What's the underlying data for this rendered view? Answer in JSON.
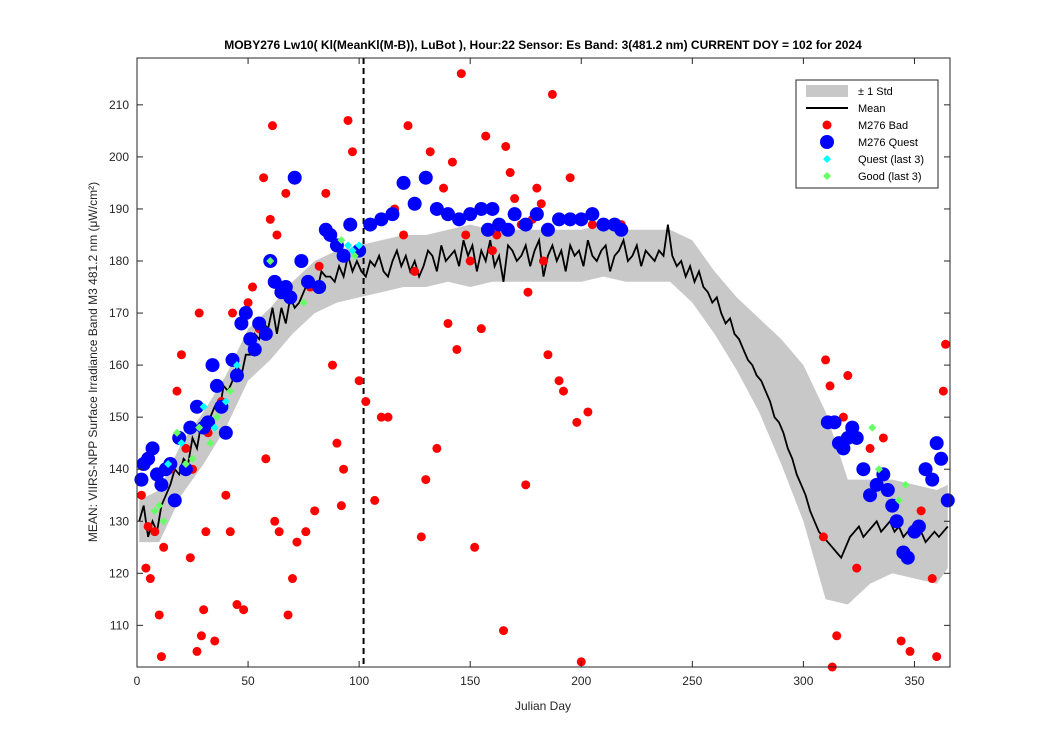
{
  "chart_data": {
    "type": "scatter",
    "title": "MOBY276   Lw10( Kl(MeanKl(M-B)), LuBot ),    Hour:22 Sensor: Es Band: 3(481.2 nm)   CURRENT DOY = 102 for 2024",
    "xlabel": "Julian Day",
    "ylabel": "MEAN: VIIRS-NPP Surface Irradiance Band M3 481.2 nm (μW/cm²)",
    "xlim": [
      0,
      366
    ],
    "ylim": [
      102,
      219
    ],
    "xticks": [
      0,
      50,
      100,
      150,
      200,
      250,
      300,
      350
    ],
    "yticks": [
      110,
      120,
      130,
      140,
      150,
      160,
      170,
      180,
      190,
      200,
      210
    ],
    "current_doy": 102,
    "legend_position": "top-right",
    "colors": {
      "band": "#c8c8c8",
      "mean": "#000000",
      "bad": "#ff0000",
      "quest": "#0000ff",
      "quest_last3": "#00ffff",
      "good_last3": "#66ff66",
      "doy_line": "#000000"
    },
    "legend": [
      {
        "key": "band",
        "label": "± 1 Std"
      },
      {
        "key": "mean",
        "label": "Mean"
      },
      {
        "key": "bad",
        "label": "M276 Bad"
      },
      {
        "key": "quest",
        "label": "M276 Quest"
      },
      {
        "key": "quest_last3",
        "label": "Quest (last 3)"
      },
      {
        "key": "good_last3",
        "label": "Good (last 3)"
      }
    ],
    "series": [
      {
        "name": "Mean",
        "type": "line",
        "x": [
          1,
          3,
          5,
          7,
          9,
          11,
          13,
          15,
          17,
          19,
          21,
          23,
          25,
          27,
          29,
          31,
          33,
          35,
          37,
          39,
          41,
          43,
          45,
          47,
          49,
          51,
          53,
          55,
          57,
          59,
          61,
          63,
          65,
          67,
          69,
          71,
          73,
          75,
          77,
          79,
          81,
          83,
          85,
          87,
          89,
          91,
          93,
          95,
          97,
          99,
          101,
          103,
          105,
          107,
          109,
          111,
          113,
          115,
          117,
          119,
          121,
          123,
          125,
          127,
          129,
          131,
          133,
          135,
          137,
          139,
          141,
          143,
          145,
          147,
          149,
          151,
          153,
          155,
          157,
          159,
          161,
          163,
          165,
          167,
          169,
          171,
          173,
          175,
          177,
          179,
          181,
          183,
          185,
          187,
          189,
          191,
          193,
          195,
          197,
          199,
          201,
          203,
          205,
          207,
          209,
          211,
          213,
          215,
          217,
          219,
          221,
          223,
          225,
          227,
          229,
          231,
          233,
          235,
          237,
          239,
          241,
          243,
          245,
          247,
          249,
          251,
          253,
          255,
          257,
          259,
          261,
          263,
          265,
          267,
          269,
          271,
          273,
          275,
          277,
          279,
          281,
          283,
          285,
          287,
          289,
          291,
          293,
          295,
          297,
          299,
          301,
          303,
          305,
          307,
          309,
          311,
          313,
          315,
          317,
          319,
          321,
          323,
          325,
          327,
          329,
          331,
          333,
          335,
          337,
          339,
          341,
          343,
          345,
          347,
          349,
          351,
          353,
          355,
          357,
          359,
          361,
          363,
          365
        ],
        "y": [
          130,
          133,
          127,
          130,
          128,
          133,
          135,
          137,
          140,
          139,
          142,
          141,
          146,
          144,
          149,
          147,
          150,
          152,
          151,
          156,
          155,
          157,
          160,
          158,
          162,
          162,
          166,
          165,
          168,
          167,
          171,
          166,
          171,
          168,
          173,
          171,
          172,
          174,
          176,
          175,
          174,
          178,
          177,
          177,
          176,
          179,
          177,
          181,
          178,
          180,
          178,
          177,
          180,
          179,
          181,
          178,
          177,
          180,
          182,
          179,
          181,
          178,
          180,
          177,
          179,
          182,
          181,
          178,
          183,
          180,
          181,
          182,
          179,
          184,
          181,
          183,
          178,
          182,
          180,
          184,
          179,
          181,
          176,
          183,
          182,
          180,
          181,
          183,
          179,
          182,
          184,
          177,
          181,
          183,
          180,
          182,
          178,
          183,
          181,
          182,
          179,
          184,
          181,
          180,
          182,
          183,
          178,
          181,
          182,
          184,
          180,
          181,
          183,
          179,
          182,
          181,
          180,
          182,
          181,
          187,
          181,
          179,
          180,
          177,
          179,
          176,
          178,
          175,
          174,
          172,
          173,
          170,
          168,
          169,
          166,
          165,
          163,
          161,
          160,
          158,
          157,
          155,
          153,
          150,
          149,
          147,
          144,
          142,
          139,
          137,
          135,
          132,
          130,
          128,
          127,
          126,
          125,
          124,
          123,
          125,
          127,
          128,
          129,
          127,
          128,
          129,
          130,
          128,
          129,
          130,
          128,
          129,
          127,
          128,
          129,
          127,
          128,
          126,
          127,
          128,
          127,
          128,
          129
        ]
      },
      {
        "name": "± 1 Std",
        "type": "band",
        "x": [
          1,
          10,
          20,
          30,
          40,
          50,
          60,
          70,
          80,
          90,
          100,
          110,
          120,
          130,
          140,
          150,
          160,
          170,
          180,
          190,
          200,
          210,
          220,
          230,
          240,
          250,
          260,
          270,
          280,
          290,
          300,
          310,
          320,
          330,
          340,
          350,
          360,
          365
        ],
        "y": [
          130,
          131,
          140,
          146,
          153,
          162,
          166,
          171,
          175,
          177,
          178,
          179,
          180,
          180,
          181,
          181,
          181,
          181,
          181,
          181,
          181,
          182,
          181,
          181,
          181,
          178,
          172,
          166,
          160,
          153,
          145,
          133,
          126,
          128,
          129,
          128,
          127,
          129
        ],
        "std": [
          4,
          5,
          5,
          5,
          5,
          5,
          5,
          5,
          5,
          5,
          5,
          5,
          5,
          5,
          5,
          6,
          5,
          5,
          5,
          5,
          5,
          5,
          5,
          5,
          5,
          6,
          6,
          7,
          9,
          12,
          15,
          18,
          12,
          10,
          9,
          9,
          9,
          8
        ]
      },
      {
        "name": "M276 Bad",
        "type": "scatter",
        "x": [
          2,
          4,
          5,
          6,
          8,
          10,
          11,
          12,
          15,
          18,
          20,
          22,
          24,
          25,
          27,
          28,
          29,
          30,
          31,
          32,
          35,
          38,
          40,
          42,
          43,
          45,
          47,
          48,
          50,
          52,
          55,
          57,
          58,
          60,
          61,
          62,
          63,
          64,
          67,
          68,
          70,
          72,
          74,
          76,
          78,
          80,
          82,
          85,
          88,
          90,
          92,
          93,
          95,
          97,
          100,
          103,
          107,
          110,
          113,
          116,
          120,
          122,
          125,
          128,
          130,
          132,
          135,
          138,
          140,
          142,
          144,
          146,
          148,
          150,
          152,
          155,
          157,
          160,
          162,
          165,
          166,
          168,
          170,
          173,
          175,
          176,
          178,
          180,
          182,
          183,
          185,
          187,
          190,
          192,
          195,
          198,
          200,
          203,
          205,
          210,
          218,
          309,
          310,
          312,
          313,
          315,
          318,
          320,
          324,
          330,
          336,
          344,
          348,
          353,
          358,
          360,
          363,
          364
        ],
        "y": [
          135,
          121,
          129,
          119,
          128,
          112,
          104,
          125,
          140,
          155,
          162,
          144,
          123,
          140,
          105,
          170,
          108,
          113,
          128,
          147,
          107,
          153,
          135,
          128,
          170,
          114,
          168,
          113,
          172,
          175,
          167,
          196,
          142,
          188,
          206,
          130,
          185,
          128,
          193,
          112,
          119,
          126,
          180,
          128,
          175,
          132,
          179,
          193,
          160,
          145,
          133,
          140,
          207,
          201,
          157,
          153,
          134,
          150,
          150,
          190,
          185,
          206,
          178,
          127,
          138,
          201,
          144,
          194,
          168,
          199,
          163,
          216,
          185,
          180,
          125,
          167,
          204,
          182,
          185,
          109,
          202,
          197,
          192,
          187,
          137,
          174,
          188,
          194,
          191,
          180,
          162,
          212,
          157,
          155,
          196,
          149,
          103,
          151,
          187,
          187,
          187,
          127,
          161,
          156,
          102,
          108,
          150,
          158,
          121,
          144,
          146,
          107,
          105,
          132,
          119,
          104,
          155,
          164
        ]
      },
      {
        "name": "M276 Quest",
        "type": "scatter",
        "x": [
          2,
          3,
          5,
          7,
          9,
          11,
          13,
          15,
          17,
          19,
          22,
          24,
          27,
          30,
          32,
          34,
          36,
          38,
          40,
          43,
          45,
          47,
          49,
          51,
          53,
          55,
          58,
          60,
          62,
          65,
          67,
          69,
          71,
          74,
          77,
          82,
          85,
          87,
          90,
          93,
          96,
          100,
          105,
          110,
          115,
          120,
          125,
          130,
          135,
          140,
          145,
          150,
          155,
          158,
          160,
          163,
          167,
          170,
          175,
          180,
          185,
          190,
          195,
          200,
          205,
          210,
          215,
          218,
          311,
          314,
          316,
          318,
          320,
          322,
          324,
          327,
          330,
          333,
          336,
          338,
          340,
          342,
          345,
          347,
          350,
          352,
          355,
          358,
          360,
          362,
          365
        ],
        "y": [
          138,
          141,
          142,
          144,
          139,
          137,
          140,
          141,
          134,
          146,
          140,
          148,
          152,
          148,
          149,
          160,
          156,
          152,
          147,
          161,
          158,
          168,
          170,
          165,
          163,
          168,
          166,
          180,
          176,
          174,
          175,
          173,
          196,
          180,
          176,
          175,
          186,
          185,
          183,
          181,
          187,
          182,
          187,
          188,
          189,
          195,
          191,
          196,
          190,
          189,
          188,
          189,
          190,
          186,
          190,
          187,
          186,
          189,
          187,
          189,
          186,
          188,
          188,
          188,
          189,
          187,
          187,
          186,
          149,
          149,
          145,
          144,
          146,
          148,
          146,
          140,
          135,
          137,
          139,
          136,
          133,
          130,
          124,
          123,
          128,
          129,
          140,
          138,
          145,
          142,
          134
        ]
      },
      {
        "name": "Quest (last 3)",
        "type": "scatter",
        "x": [
          14,
          20,
          30,
          35,
          40,
          45,
          95,
          97,
          100
        ],
        "y": [
          141,
          145,
          152,
          148,
          153,
          160,
          183,
          182,
          183
        ]
      },
      {
        "name": "Good (last 3)",
        "type": "scatter",
        "x": [
          8,
          10,
          12,
          18,
          22,
          25,
          28,
          33,
          36,
          42,
          60,
          75,
          92,
          98,
          331,
          334,
          343,
          346
        ],
        "y": [
          132,
          133,
          130,
          147,
          141,
          142,
          148,
          145,
          150,
          155,
          180,
          172,
          184,
          181,
          148,
          140,
          134,
          137
        ]
      }
    ]
  }
}
